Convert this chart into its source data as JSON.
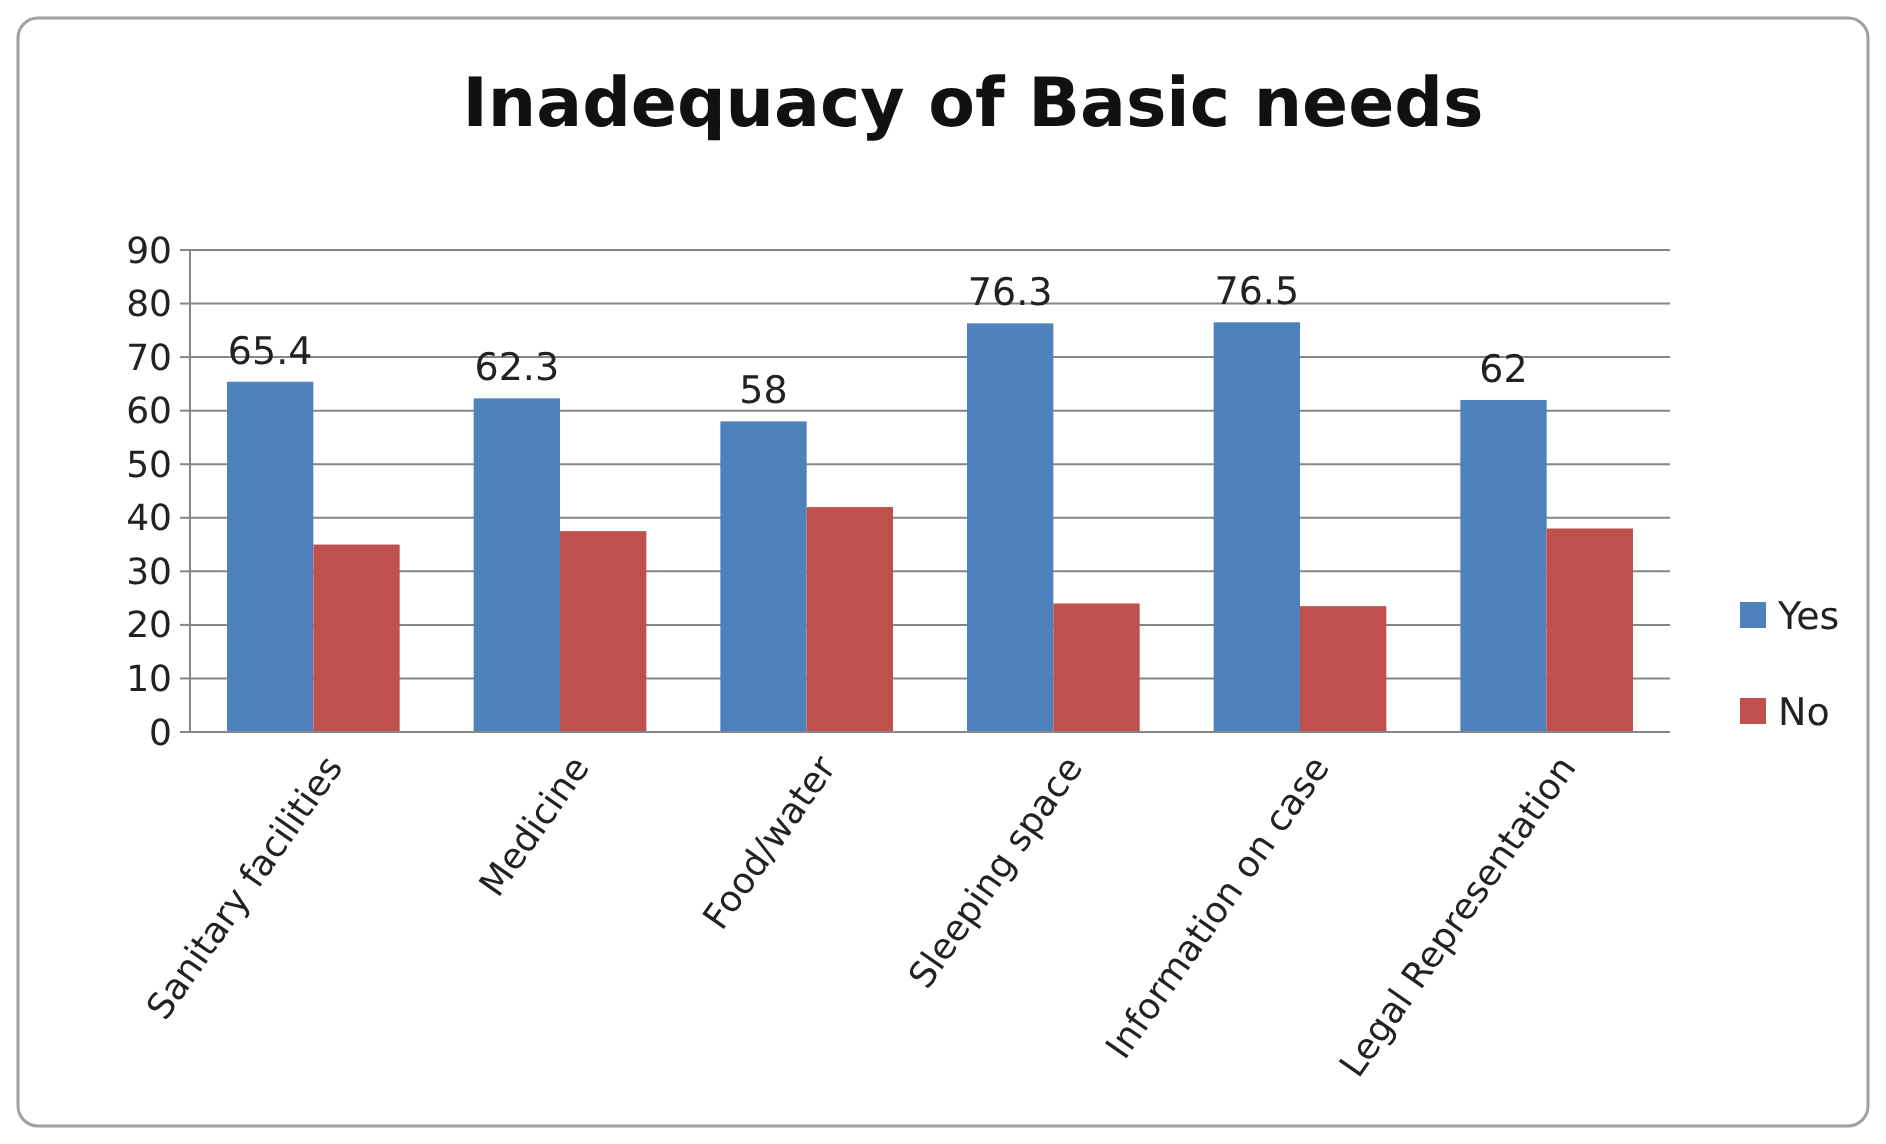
{
  "chart_data": {
    "type": "bar",
    "title": "Inadequacy of Basic needs",
    "categories": [
      "Sanitary facilities",
      "Medicine",
      "Food/water",
      "Sleeping space",
      "Information on case",
      "Legal Representation"
    ],
    "series": [
      {
        "name": "Yes",
        "color": "#4f81bd",
        "values": [
          65.4,
          62.3,
          58,
          76.3,
          76.5,
          62
        ],
        "value_labels": [
          "65.4",
          "62.3",
          "58",
          "76.3",
          "76.5",
          "62"
        ]
      },
      {
        "name": "No",
        "color": "#c0504d",
        "values": [
          35,
          37.5,
          42,
          24,
          23.5,
          38
        ]
      }
    ],
    "ylim": [
      0,
      90
    ],
    "yticks": [
      0,
      10,
      20,
      30,
      40,
      50,
      60,
      70,
      80,
      90
    ],
    "grid": "y",
    "legend": "right"
  }
}
